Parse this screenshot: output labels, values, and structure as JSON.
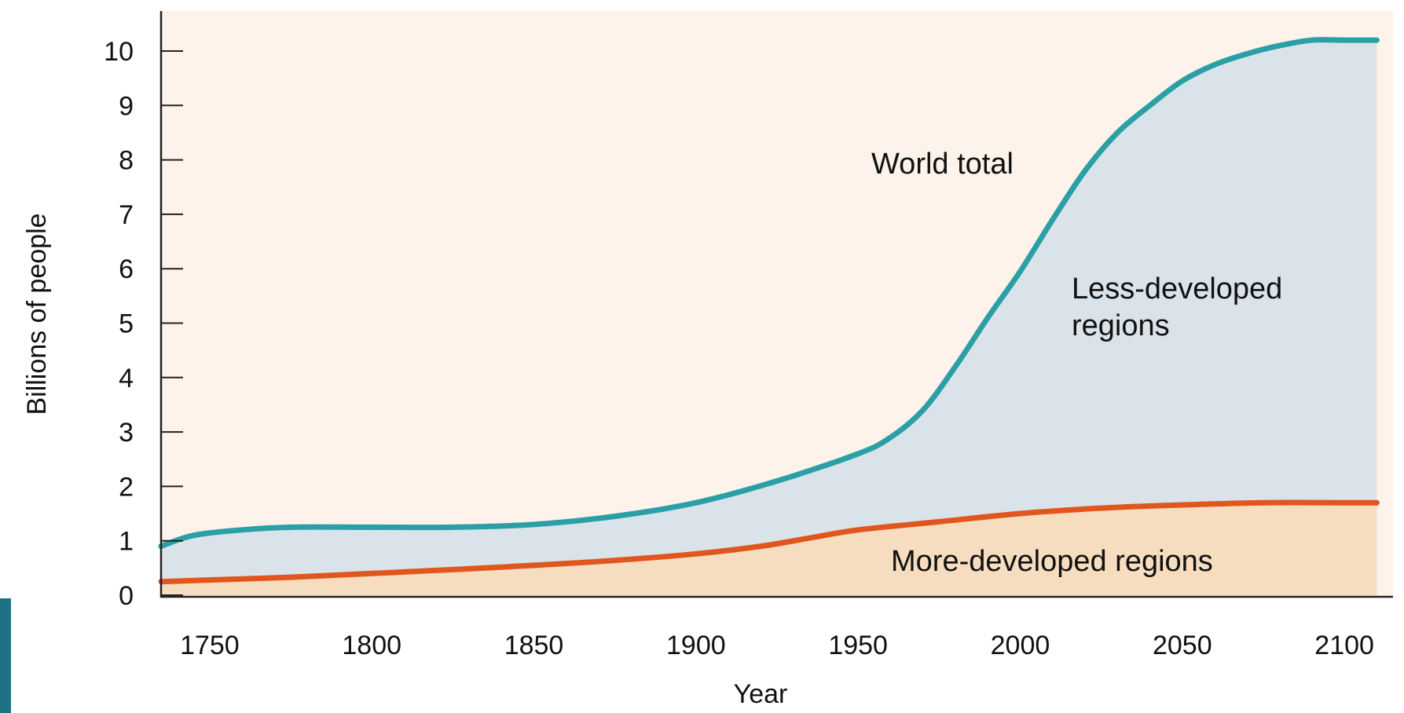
{
  "chart_data": {
    "type": "area",
    "xlabel": "Year",
    "ylabel": "Billions of people",
    "xlim": [
      1735,
      2115
    ],
    "ylim": [
      0,
      10.5
    ],
    "x_ticks": [
      "1750",
      "1800",
      "1850",
      "1900",
      "1950",
      "2000",
      "2050",
      "2100"
    ],
    "y_ticks": [
      "0",
      "1",
      "2",
      "3",
      "4",
      "5",
      "6",
      "7",
      "8",
      "9",
      "10"
    ],
    "grid": false,
    "series": [
      {
        "name": "World total",
        "color": "#2aa0a6",
        "fill": "#dbe3ea",
        "x": [
          1735,
          1745,
          1760,
          1775,
          1800,
          1825,
          1850,
          1875,
          1900,
          1925,
          1950,
          1960,
          1970,
          1980,
          1990,
          2000,
          2010,
          2020,
          2030,
          2040,
          2050,
          2060,
          2070,
          2080,
          2090,
          2100,
          2110
        ],
        "y": [
          0.9,
          1.1,
          1.2,
          1.25,
          1.25,
          1.25,
          1.3,
          1.45,
          1.7,
          2.1,
          2.6,
          2.9,
          3.4,
          4.2,
          5.1,
          5.95,
          6.9,
          7.8,
          8.5,
          9.0,
          9.45,
          9.75,
          9.95,
          10.1,
          10.2,
          10.2,
          10.2
        ]
      },
      {
        "name": "More-developed regions",
        "color": "#e0561c",
        "fill": "#f7ddc0",
        "x": [
          1735,
          1750,
          1775,
          1800,
          1825,
          1850,
          1875,
          1900,
          1920,
          1935,
          1950,
          1975,
          2000,
          2025,
          2050,
          2075,
          2100,
          2110
        ],
        "y": [
          0.25,
          0.28,
          0.33,
          0.4,
          0.47,
          0.55,
          0.64,
          0.76,
          0.9,
          1.05,
          1.2,
          1.35,
          1.5,
          1.6,
          1.66,
          1.7,
          1.7,
          1.7
        ]
      }
    ],
    "annotations": {
      "world_total": "World total",
      "less_developed": [
        "Less-developed",
        "regions"
      ],
      "more_developed": "More-developed regions"
    }
  },
  "colors": {
    "plot_background": "#fdf3ea",
    "axis": "#222222",
    "side_bar": "#1f7186"
  }
}
